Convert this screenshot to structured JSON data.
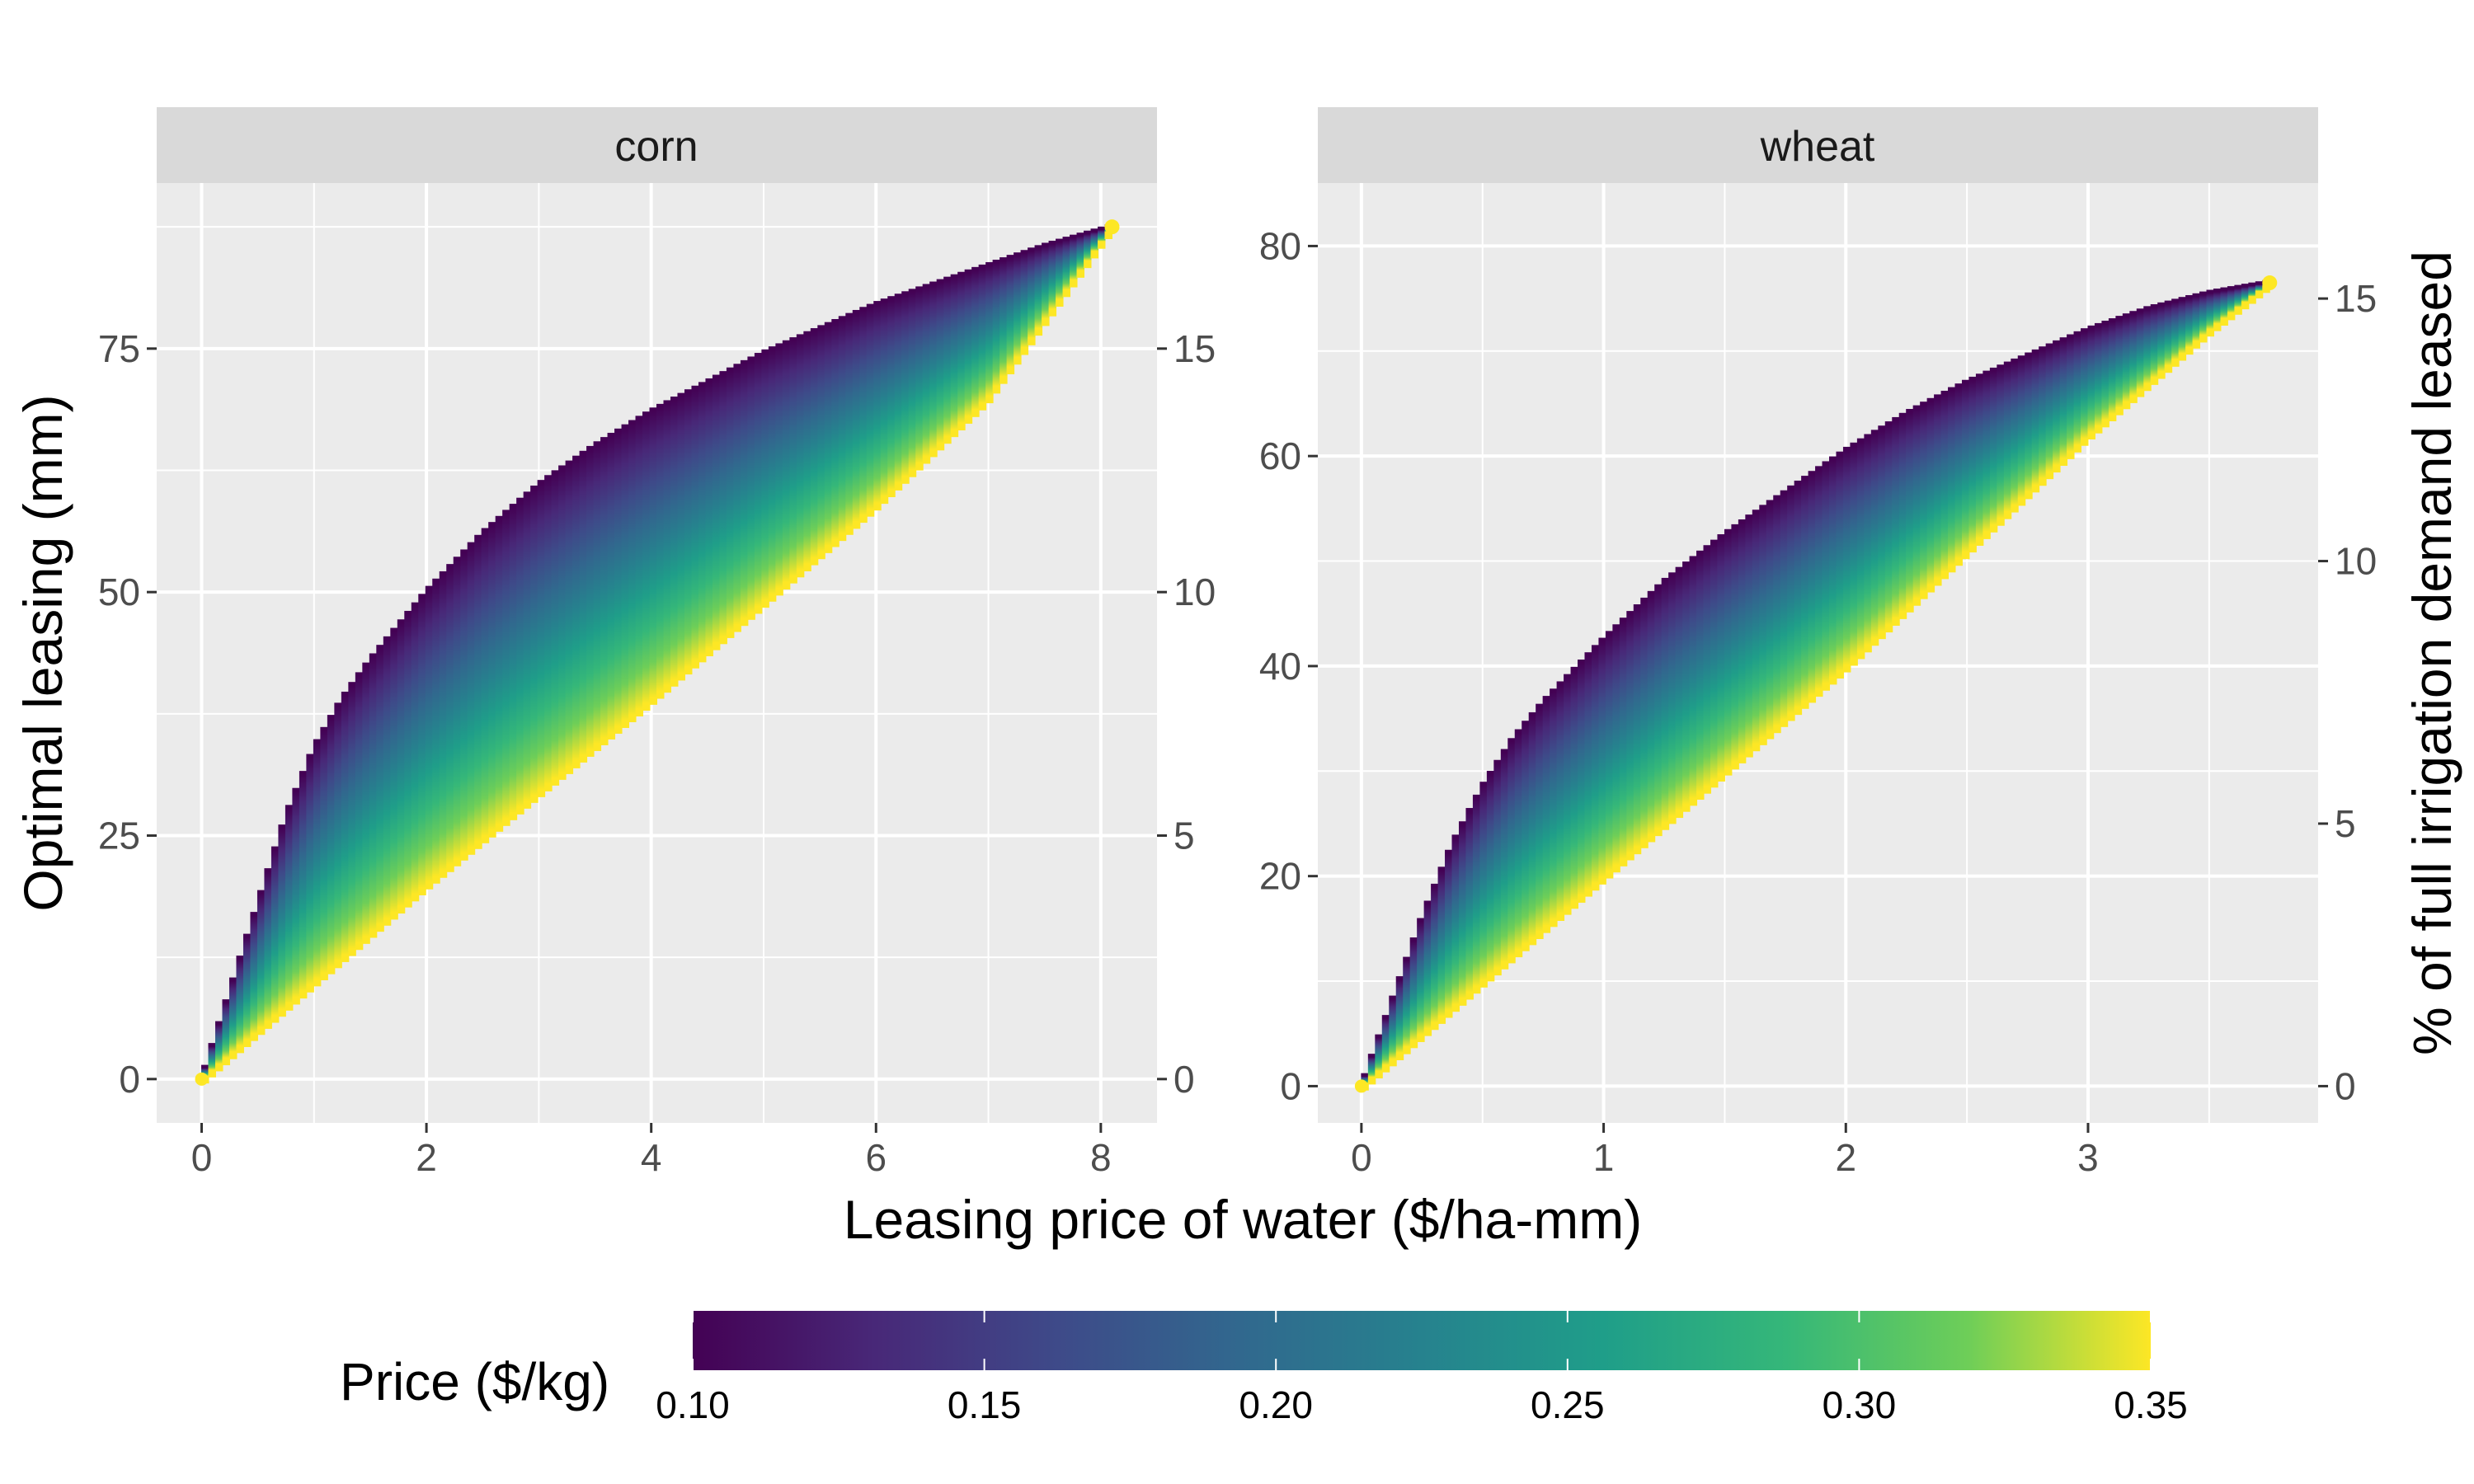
{
  "chart_data": {
    "type": "area",
    "xlabel": "Leasing price of water ($/ha-mm)",
    "ylabel": "Optimal leasing (mm)",
    "y2label": "% of full irrigation demand leased",
    "legend": {
      "title": "Price ($/kg)",
      "position": "bottom",
      "range": [
        0.1,
        0.35
      ],
      "ticks": [
        "0.10",
        "0.15",
        "0.20",
        "0.25",
        "0.30",
        "0.35"
      ],
      "colormap": "viridis"
    },
    "grid": true,
    "panels": [
      {
        "strip": "corn",
        "xlim": [
          -0.4,
          8.5
        ],
        "ylim": [
          -4.5,
          92
        ],
        "xticks": [
          "0",
          "2",
          "4",
          "6",
          "8"
        ],
        "yticks": [
          "0",
          "25",
          "50",
          "75"
        ],
        "y2lim": [
          -0.9,
          18.4
        ],
        "y2ticks": [
          "0",
          "5",
          "10",
          "15"
        ],
        "upper_boundary_color_price_0.10": {
          "x": [
            0,
            0.25,
            0.5,
            0.75,
            1.0,
            1.25,
            1.5,
            2.0,
            2.5,
            3.0,
            3.5,
            4.0,
            4.5,
            5.0,
            5.5,
            6.0,
            6.5,
            7.0,
            7.5,
            8.1
          ],
          "y": [
            0,
            9,
            18,
            27,
            34,
            39,
            43,
            50,
            56,
            61,
            65,
            68.5,
            71.5,
            74.5,
            77,
            79.5,
            81.5,
            83.5,
            85.5,
            87.5
          ]
        },
        "lower_boundary_color_price_0.35": {
          "x": [
            0,
            1,
            2,
            3,
            4,
            5,
            6,
            7,
            8.1
          ],
          "y": [
            0,
            10,
            20,
            29.5,
            39,
            49,
            59,
            70,
            87.5
          ]
        }
      },
      {
        "strip": "wheat",
        "xlim": [
          -0.18,
          3.95
        ],
        "ylim": [
          -3.5,
          86
        ],
        "xticks": [
          "0",
          "1",
          "2",
          "3"
        ],
        "yticks": [
          "0",
          "20",
          "40",
          "60",
          "80"
        ],
        "y2lim": [
          -0.7,
          17.2
        ],
        "y2ticks": [
          "0",
          "5",
          "10",
          "15"
        ],
        "upper_boundary_color_price_0.10": {
          "x": [
            0,
            0.125,
            0.25,
            0.375,
            0.5,
            0.625,
            0.75,
            1.0,
            1.25,
            1.5,
            1.75,
            2.0,
            2.25,
            2.5,
            2.75,
            3.0,
            3.25,
            3.5,
            3.75
          ],
          "y": [
            0,
            8,
            16,
            23,
            28.5,
            33,
            36.5,
            42.5,
            48,
            52.5,
            56.5,
            60.5,
            64,
            67,
            69.5,
            72,
            74,
            75.5,
            76.5
          ]
        },
        "lower_boundary_color_price_0.35": {
          "x": [
            0,
            0.5,
            1,
            1.5,
            2,
            2.5,
            3,
            3.5,
            3.75
          ],
          "y": [
            0,
            10,
            20,
            30,
            40,
            51,
            62,
            72,
            76.5
          ]
        }
      }
    ]
  }
}
